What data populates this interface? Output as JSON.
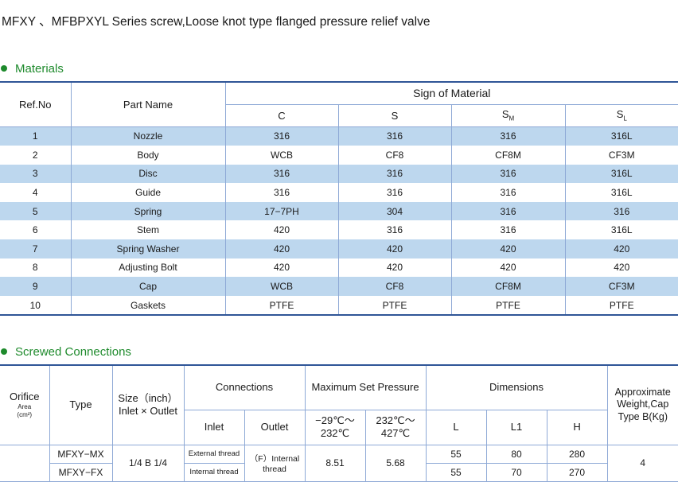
{
  "title": "MFXY 、MFBPXYL Series screw,Loose knot type flanged pressure relief valve",
  "materials": {
    "heading": "Materials",
    "headers": {
      "ref": "Ref.No",
      "part": "Part Name",
      "sign": "Sign of Material",
      "c": "C",
      "s": "S",
      "sm": "S",
      "sm_sub": "M",
      "sl": "S",
      "sl_sub": "L"
    },
    "rows": [
      {
        "ref": "1",
        "part": "Nozzle",
        "c": "316",
        "s": "316",
        "sm": "316",
        "sl": "316L"
      },
      {
        "ref": "2",
        "part": "Body",
        "c": "WCB",
        "s": "CF8",
        "sm": "CF8M",
        "sl": "CF3M"
      },
      {
        "ref": "3",
        "part": "Disc",
        "c": "316",
        "s": "316",
        "sm": "316",
        "sl": "316L"
      },
      {
        "ref": "4",
        "part": "Guide",
        "c": "316",
        "s": "316",
        "sm": "316",
        "sl": "316L"
      },
      {
        "ref": "5",
        "part": "Spring",
        "c": "17−7PH",
        "s": "304",
        "sm": "316",
        "sl": "316"
      },
      {
        "ref": "6",
        "part": "Stem",
        "c": "420",
        "s": "316",
        "sm": "316",
        "sl": "316L"
      },
      {
        "ref": "7",
        "part": "Spring Washer",
        "c": "420",
        "s": "420",
        "sm": "420",
        "sl": "420"
      },
      {
        "ref": "8",
        "part": "Adjusting Bolt",
        "c": "420",
        "s": "420",
        "sm": "420",
        "sl": "420"
      },
      {
        "ref": "9",
        "part": "Cap",
        "c": "WCB",
        "s": "CF8",
        "sm": "CF8M",
        "sl": "CF3M"
      },
      {
        "ref": "10",
        "part": "Gaskets",
        "c": "PTFE",
        "s": "PTFE",
        "sm": "PTFE",
        "sl": "PTFE"
      }
    ]
  },
  "screwed": {
    "heading": "Screwed Connections",
    "headers": {
      "orifice": "Orifice",
      "orifice_area": "Area",
      "orifice_unit": "(cm²)",
      "type": "Type",
      "size_line1": "Size（inch）",
      "size_line2": "Inlet × Outlet",
      "connections": "Connections",
      "inlet": "Inlet",
      "outlet": "Outlet",
      "max_pressure": "Maximum Set Pressure",
      "p1_line1": "−29℃～",
      "p1_line2": "232℃",
      "p2_line1": "232℃～",
      "p2_line2": "427℃",
      "dimensions": "Dimensions",
      "l": "L",
      "l1": "L1",
      "h": "H",
      "weight_line1": "Approximate",
      "weight_line2": "Weight,Cap",
      "weight_line3": "Type B(Kg)"
    },
    "rows": [
      {
        "type": "MFXY−MX",
        "inlet": "External thread",
        "l": "55",
        "l1": "80",
        "h": "280"
      },
      {
        "type": "MFXY−FX",
        "inlet": "Internal thread",
        "l": "55",
        "l1": "70",
        "h": "270"
      }
    ],
    "shared": {
      "size": "1/4 B 1/4",
      "outlet": "（F）Internal thread",
      "p1": "8.51",
      "p2": "5.68",
      "weight": "4"
    }
  }
}
